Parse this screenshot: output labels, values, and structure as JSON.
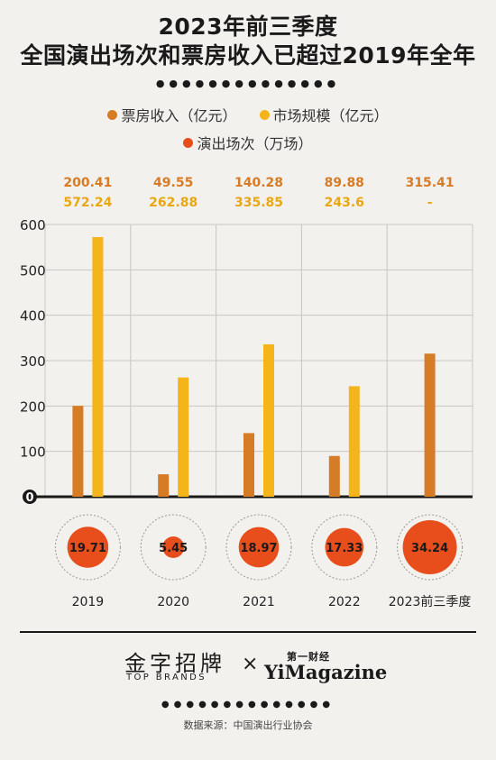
{
  "title_line1": "2023年前三季度",
  "title_line2": "全国演出场次和票房收入已超过2019年全年",
  "dots": "●●●●●●●●●●●●●●",
  "legend": [
    {
      "label": "票房收入（亿元）",
      "color": "#d77c26"
    },
    {
      "label": "市场规模（亿元）",
      "color": "#f5b419"
    },
    {
      "label": "演出场次（万场）",
      "color": "#e84e1b"
    }
  ],
  "chart_data": {
    "type": "bar",
    "categories": [
      "2019",
      "2020",
      "2021",
      "2022",
      "2023前三季度"
    ],
    "series": [
      {
        "name": "票房收入（亿元）",
        "color": "#d77c26",
        "values": [
          200.41,
          49.55,
          140.28,
          89.88,
          315.41
        ]
      },
      {
        "name": "市场规模（亿元）",
        "color": "#f5b419",
        "values": [
          572.24,
          262.88,
          335.85,
          243.6,
          null
        ]
      },
      {
        "name": "演出场次（万场）",
        "color": "#e84e1b",
        "values": [
          19.71,
          5.45,
          18.97,
          17.33,
          34.24
        ]
      }
    ],
    "top_labels_row1": [
      "200.41",
      "49.55",
      "140.28",
      "89.88",
      "315.41"
    ],
    "top_labels_row2": [
      "572.24",
      "262.88",
      "335.85",
      "243.6",
      "-"
    ],
    "circle_labels": [
      "19.71",
      "5.45",
      "18.97",
      "17.33",
      "34.24"
    ],
    "yticks": [
      "100",
      "200",
      "300",
      "400",
      "500",
      "600"
    ],
    "zero_label": "0",
    "ylim": [
      0,
      600
    ],
    "grid": true
  },
  "brand": {
    "name_cn": "金字招牌",
    "name_en": "TOP BRANDS",
    "cross": "×",
    "partner_top": "第一财经",
    "partner": "YiMagazine"
  },
  "source": "数据来源：中国演出行业协会"
}
